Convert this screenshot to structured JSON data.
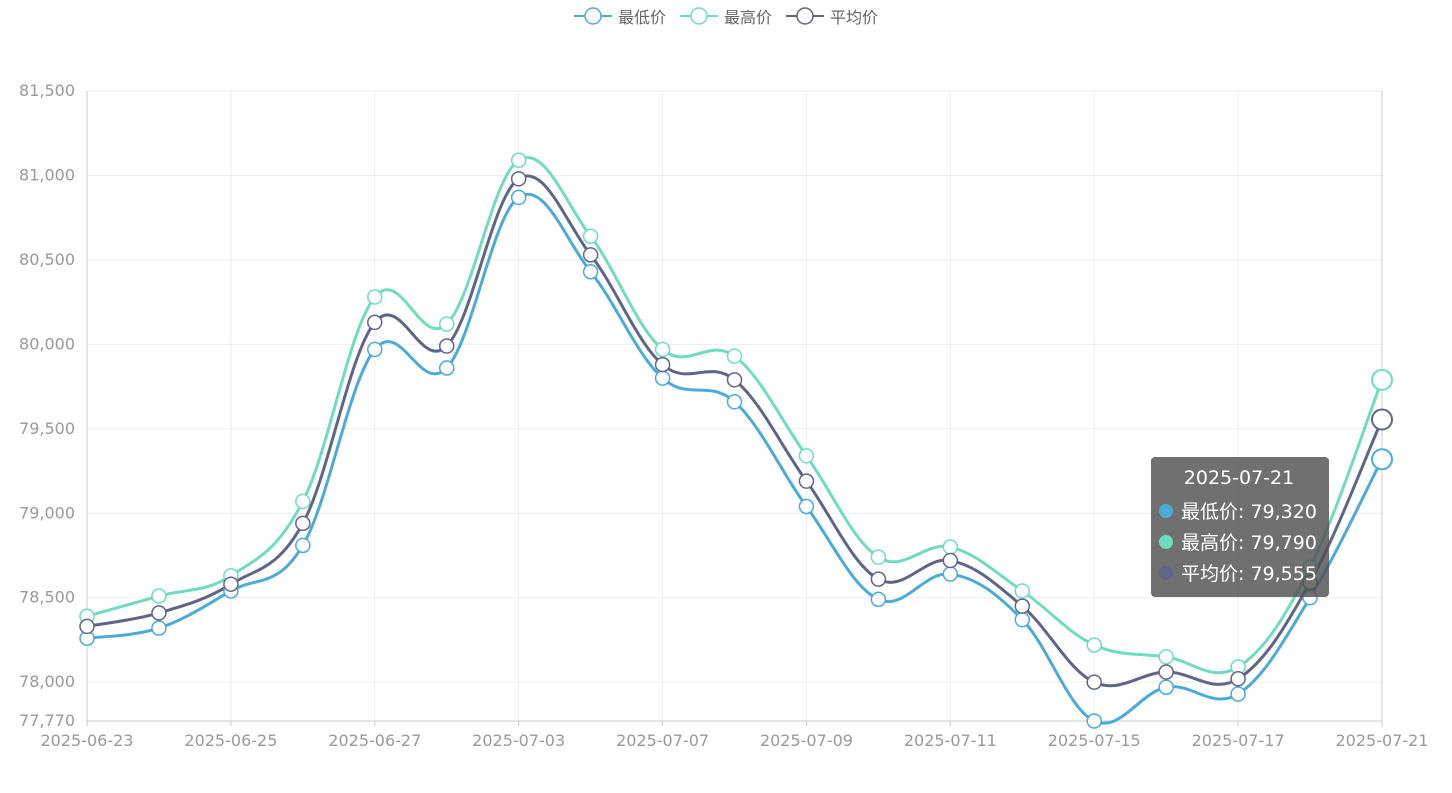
{
  "legend": [
    {
      "name": "最低价",
      "color": "#4aabd6"
    },
    {
      "name": "最高价",
      "color": "#6fdcc0"
    },
    {
      "name": "平均价",
      "color": "#5f6586"
    }
  ],
  "tooltip": {
    "title": "2025-07-21",
    "rows": [
      {
        "label": "最低价: 79,320",
        "color": "#4aabd6"
      },
      {
        "label": "最高价: 79,790",
        "color": "#6fdcc0"
      },
      {
        "label": "平均价: 79,555",
        "color": "#5f6586"
      }
    ]
  },
  "chart_data": {
    "type": "line",
    "title": "",
    "xlabel": "",
    "ylabel": "",
    "ylim": [
      77770,
      81500
    ],
    "y_ticks": [
      77770,
      78000,
      78500,
      79000,
      79500,
      80000,
      80500,
      81000,
      81500
    ],
    "y_tick_labels": [
      "77,770",
      "78,000",
      "78,500",
      "79,000",
      "79,500",
      "80,000",
      "80,500",
      "81,000",
      "81,500"
    ],
    "x_labels": [
      "2025-06-23",
      "2025-06-25",
      "2025-06-27",
      "2025-07-03",
      "2025-07-07",
      "2025-07-09",
      "2025-07-11",
      "2025-07-15",
      "2025-07-17",
      "2025-07-21"
    ],
    "categories": [
      "2025-06-23",
      "2025-06-24",
      "2025-06-25",
      "2025-06-26",
      "2025-06-27",
      "2025-06-30",
      "2025-07-03",
      "2025-07-04",
      "2025-07-07",
      "2025-07-08",
      "2025-07-09",
      "2025-07-10",
      "2025-07-11",
      "2025-07-14",
      "2025-07-15",
      "2025-07-16",
      "2025-07-17",
      "2025-07-18",
      "2025-07-21"
    ],
    "grid": true,
    "legend_position": "top-center",
    "series": [
      {
        "name": "最低价",
        "color": "#4aabd6",
        "values": [
          78260,
          78320,
          78540,
          78810,
          79970,
          79860,
          80870,
          80430,
          79800,
          79660,
          79040,
          78490,
          78640,
          78370,
          77770,
          77970,
          77930,
          78500,
          79320
        ]
      },
      {
        "name": "最高价",
        "color": "#6fdcc0",
        "values": [
          78390,
          78510,
          78630,
          79070,
          80280,
          80120,
          81090,
          80640,
          79970,
          79930,
          79340,
          78740,
          78800,
          78540,
          78220,
          78150,
          78090,
          78680,
          79790
        ]
      },
      {
        "name": "平均价",
        "color": "#5f6586",
        "values": [
          78330,
          78410,
          78580,
          78940,
          80130,
          79990,
          80980,
          80530,
          79880,
          79790,
          79190,
          78610,
          78720,
          78450,
          78000,
          78060,
          78020,
          78590,
          79555
        ]
      }
    ]
  }
}
